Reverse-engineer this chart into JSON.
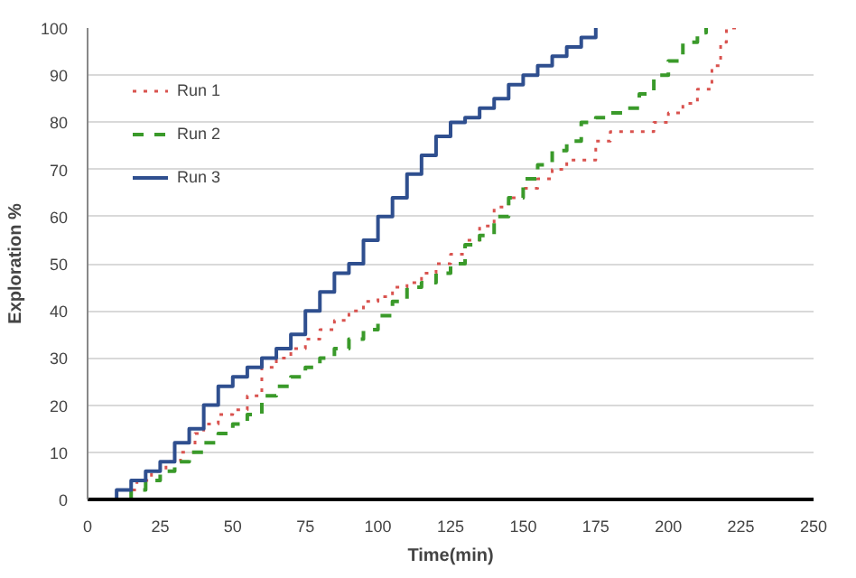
{
  "chart_data": {
    "type": "step",
    "xlabel": "Time(min)",
    "ylabel": "Exploration %",
    "xlim": [
      0,
      250
    ],
    "ylim": [
      0,
      100
    ],
    "xticks": [
      0,
      25,
      50,
      75,
      100,
      125,
      150,
      175,
      200,
      225,
      250
    ],
    "yticks": [
      0,
      10,
      20,
      30,
      40,
      50,
      60,
      70,
      80,
      90,
      100
    ],
    "grid": "y",
    "legend": "top left",
    "marker": "none",
    "series": [
      {
        "name": "Run 1",
        "color": "#d9534f",
        "line_style": "dotted",
        "x": [
          0,
          8,
          12,
          17,
          22,
          27,
          32,
          37,
          40,
          45,
          50,
          55,
          60,
          65,
          70,
          75,
          80,
          85,
          90,
          95,
          100,
          105,
          110,
          115,
          120,
          125,
          130,
          135,
          140,
          145,
          150,
          155,
          160,
          165,
          170,
          175,
          180,
          190,
          195,
          200,
          205,
          210,
          215,
          218,
          220,
          225
        ],
        "values": [
          0,
          0,
          2,
          4,
          6,
          8,
          10,
          14,
          16,
          18,
          19,
          22,
          28,
          30,
          32,
          34,
          36,
          38,
          40,
          42,
          43,
          45,
          46,
          48,
          50,
          52,
          55,
          58,
          62,
          64,
          66,
          68,
          70,
          72,
          72,
          76,
          78,
          78,
          80,
          82,
          84,
          87,
          92,
          97,
          100,
          100
        ]
      },
      {
        "name": "Run 2",
        "color": "#3a9a2a",
        "line_style": "dashed",
        "x": [
          0,
          10,
          15,
          20,
          25,
          30,
          35,
          40,
          45,
          50,
          55,
          60,
          65,
          70,
          75,
          80,
          85,
          90,
          95,
          100,
          105,
          110,
          115,
          120,
          125,
          130,
          135,
          140,
          145,
          150,
          155,
          160,
          165,
          170,
          175,
          180,
          185,
          190,
          195,
          200,
          205,
          210,
          213
        ],
        "values": [
          0,
          0,
          2,
          4,
          6,
          8,
          10,
          12,
          14,
          16,
          18,
          22,
          24,
          26,
          28,
          30,
          32,
          34,
          36,
          39,
          42,
          45,
          46,
          48,
          50,
          54,
          56,
          60,
          64,
          68,
          71,
          74,
          76,
          80,
          81,
          82,
          83,
          86,
          90,
          93,
          97,
          99,
          100
        ]
      },
      {
        "name": "Run 3",
        "color": "#2f4f8f",
        "line_style": "solid",
        "x": [
          0,
          5,
          10,
          15,
          20,
          25,
          30,
          35,
          40,
          45,
          50,
          55,
          60,
          65,
          70,
          75,
          80,
          85,
          90,
          95,
          100,
          105,
          110,
          115,
          120,
          125,
          130,
          135,
          140,
          145,
          150,
          155,
          160,
          165,
          170,
          175
        ],
        "values": [
          0,
          0,
          2,
          4,
          6,
          8,
          12,
          15,
          20,
          24,
          26,
          28,
          30,
          32,
          35,
          40,
          44,
          48,
          50,
          55,
          60,
          64,
          69,
          73,
          77,
          80,
          81,
          83,
          85,
          88,
          90,
          92,
          94,
          96,
          98,
          100
        ]
      }
    ]
  }
}
